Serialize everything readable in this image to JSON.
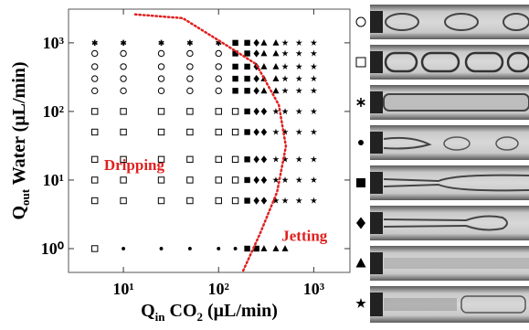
{
  "chart_data": {
    "type": "scatter",
    "xscale": "log",
    "yscale": "log",
    "xlim": [
      2.65,
      2400
    ],
    "ylim": [
      0.45,
      3100
    ],
    "xticks": [
      {
        "value": 10,
        "label": "10¹"
      },
      {
        "value": 100,
        "label": "10²"
      },
      {
        "value": 1000,
        "label": "10³"
      }
    ],
    "yticks": [
      {
        "value": 1,
        "label": "10⁰"
      },
      {
        "value": 10,
        "label": "10¹"
      },
      {
        "value": 100,
        "label": "10²"
      },
      {
        "value": 1000,
        "label": "10³"
      }
    ],
    "xlabel": [
      {
        "text": "Q"
      },
      {
        "text": "in",
        "sub": true
      },
      {
        "text": " CO"
      },
      {
        "text": "2",
        "sub": true
      },
      {
        "text": " (μL/min)"
      }
    ],
    "ylabel": [
      {
        "text": "Q"
      },
      {
        "text": "out",
        "sub": true
      },
      {
        "text": " Water (μL/min)"
      }
    ],
    "annotations": [
      {
        "text": "Dripping",
        "x": 13,
        "y": 14,
        "color": "#e02020"
      },
      {
        "text": "Jetting",
        "x": 800,
        "y": 1.3,
        "color": "#e02020"
      }
    ],
    "boundary": {
      "color": "#e02020",
      "x": [
        13.3,
        42,
        102,
        248,
        430,
        510,
        412,
        275,
        178
      ],
      "y": [
        2600,
        2290,
        1070,
        490,
        124,
        31,
        6.7,
        1.7,
        0.45
      ]
    },
    "series": [
      {
        "marker": "open-circle",
        "color": "#000",
        "x": [
          5,
          10,
          25,
          50,
          100,
          5,
          10,
          25,
          50,
          100,
          5,
          10,
          25,
          50,
          100,
          5,
          10,
          25,
          50,
          100
        ],
        "values": [
          700,
          700,
          700,
          700,
          700,
          450,
          450,
          450,
          450,
          450,
          300,
          300,
          300,
          300,
          300,
          200,
          200,
          200,
          200,
          200
        ]
      },
      {
        "marker": "open-square",
        "color": "#000",
        "x": [
          5,
          10,
          25,
          50,
          100,
          150,
          5,
          10,
          25,
          50,
          100,
          150,
          5,
          10,
          25,
          50,
          100,
          150,
          5,
          10,
          25,
          50,
          100,
          150,
          5,
          10,
          25,
          50,
          100,
          150,
          5
        ],
        "values": [
          100,
          100,
          100,
          100,
          100,
          100,
          50,
          50,
          50,
          50,
          50,
          50,
          20,
          20,
          20,
          20,
          20,
          20,
          10,
          10,
          10,
          10,
          10,
          10,
          5,
          5,
          5,
          5,
          5,
          5,
          1
        ]
      },
      {
        "marker": "asterisk",
        "color": "#000",
        "x": [
          5,
          10,
          25,
          50,
          100
        ],
        "values": [
          1000,
          1000,
          1000,
          1000,
          1000
        ]
      },
      {
        "marker": "dot",
        "color": "#000",
        "x": [
          10,
          25,
          50,
          100,
          150
        ],
        "values": [
          1,
          1,
          1,
          1,
          1
        ]
      },
      {
        "marker": "filled-square",
        "color": "#000",
        "x": [
          150,
          150,
          150,
          150,
          150,
          200,
          200,
          200,
          200,
          200,
          200,
          200,
          200,
          200,
          200,
          200,
          250
        ],
        "values": [
          1000,
          700,
          450,
          300,
          200,
          1000,
          700,
          450,
          300,
          200,
          100,
          50,
          20,
          10,
          5,
          1,
          1
        ]
      },
      {
        "marker": "diamond",
        "color": "#000",
        "x": [
          250,
          250,
          250,
          250,
          250,
          250,
          250,
          250,
          250,
          250,
          300,
          300,
          300,
          300,
          300
        ],
        "values": [
          1000,
          700,
          450,
          300,
          200,
          100,
          50,
          20,
          10,
          5,
          100,
          50,
          20,
          10,
          5
        ]
      },
      {
        "marker": "triangle",
        "color": "#000",
        "x": [
          300,
          300,
          300,
          300,
          300,
          400,
          400,
          400,
          400,
          400,
          300,
          400,
          500
        ],
        "values": [
          1000,
          700,
          450,
          300,
          200,
          1000,
          700,
          450,
          300,
          200,
          1,
          1,
          1
        ]
      },
      {
        "marker": "star",
        "color": "#000",
        "x": [
          400,
          400,
          400,
          400,
          400,
          500,
          500,
          500,
          500,
          500,
          500,
          500,
          500,
          500,
          500,
          700,
          700,
          700,
          700,
          700,
          700,
          700,
          700,
          700,
          700,
          1000,
          1000,
          1000,
          1000,
          1000,
          1000,
          1000,
          1000,
          1000,
          1000
        ],
        "values": [
          100,
          50,
          20,
          10,
          5,
          1000,
          700,
          450,
          300,
          200,
          100,
          50,
          20,
          10,
          5,
          1000,
          700,
          450,
          300,
          200,
          100,
          50,
          20,
          10,
          5,
          1000,
          700,
          450,
          300,
          200,
          100,
          50,
          20,
          10,
          5
        ]
      }
    ]
  }
}
